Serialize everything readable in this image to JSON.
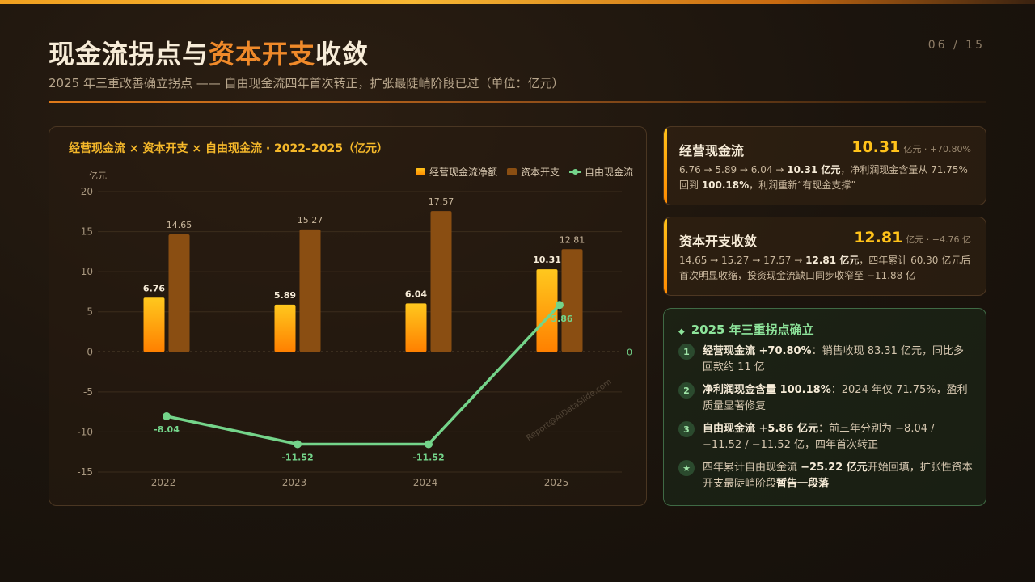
{
  "header": {
    "title_a": "现金流拐点与",
    "title_b": "资本开支",
    "title_c": "收敛",
    "subtitle": "2025 年三重改善确立拐点 —— 自由现金流四年首次转正，扩张最陡峭阶段已过（单位：亿元）",
    "page": "06 / 15"
  },
  "chart_data": {
    "type": "bar",
    "title": "经营现金流 × 资本开支 × 自由现金流 · 2022–2025（亿元）",
    "unit_label": "亿元",
    "categories": [
      "2022",
      "2023",
      "2024",
      "2025"
    ],
    "series": [
      {
        "name": "经营现金流净额",
        "kind": "bar",
        "values": [
          6.76,
          5.89,
          6.04,
          10.31
        ],
        "color": "#ffb31a"
      },
      {
        "name": "资本开支",
        "kind": "bar",
        "values": [
          14.65,
          15.27,
          17.57,
          12.81
        ],
        "color": "#8a4e12"
      },
      {
        "name": "自由现金流",
        "kind": "line",
        "values": [
          -8.04,
          -11.52,
          -11.52,
          5.86
        ],
        "color": "#74d48a"
      }
    ],
    "ylim": [
      -15,
      20
    ],
    "yticks": [
      20,
      15,
      10,
      5,
      0,
      -5,
      -10,
      -15
    ],
    "zero_label": "0",
    "watermark": "Report@AIDataSlide.com",
    "legend_position": "top-right",
    "grid": true
  },
  "cards": [
    {
      "name": "经营现金流",
      "value": "10.31",
      "unit_change": "亿元 · +70.80%",
      "desc_a": "6.76 → 5.89 → 6.04 → ",
      "desc_b": "10.31 亿元",
      "desc_c": "，净利润现金含量从 71.75% 回到 ",
      "desc_d": "100.18%",
      "desc_e": "，利润重新“有现金支撑”"
    },
    {
      "name": "资本开支收敛",
      "value": "12.81",
      "unit_change": "亿元 · −4.76 亿",
      "desc_a": "14.65 → 15.27 → 17.57 → ",
      "desc_b": "12.81 亿元",
      "desc_c": "，四年累计 60.30 亿元后首次明显收缩，投资现金流缺口同步收窄至 −11.88 亿"
    }
  ],
  "summary": {
    "icon": "◆",
    "title": "2025 年三重拐点确立",
    "points": [
      {
        "badge": "1",
        "bold": "经营现金流 +70.80%",
        "text": "：销售收现 83.31 亿元，同比多回款约 11 亿"
      },
      {
        "badge": "2",
        "bold": "净利润现金含量 100.18%",
        "text": "：2024 年仅 71.75%，盈利质量显著修复"
      },
      {
        "badge": "3",
        "bold": "自由现金流 +5.86 亿元",
        "text": "：前三年分别为 −8.04 / −11.52 / −11.52 亿，四年首次转正"
      },
      {
        "badge": "★",
        "pre": "四年累计自由现金流 ",
        "bold": "−25.22 亿元",
        "mid": "开始回填，扩张性资本开支最陡峭阶段",
        "bold2": "暂告一段落"
      }
    ]
  }
}
